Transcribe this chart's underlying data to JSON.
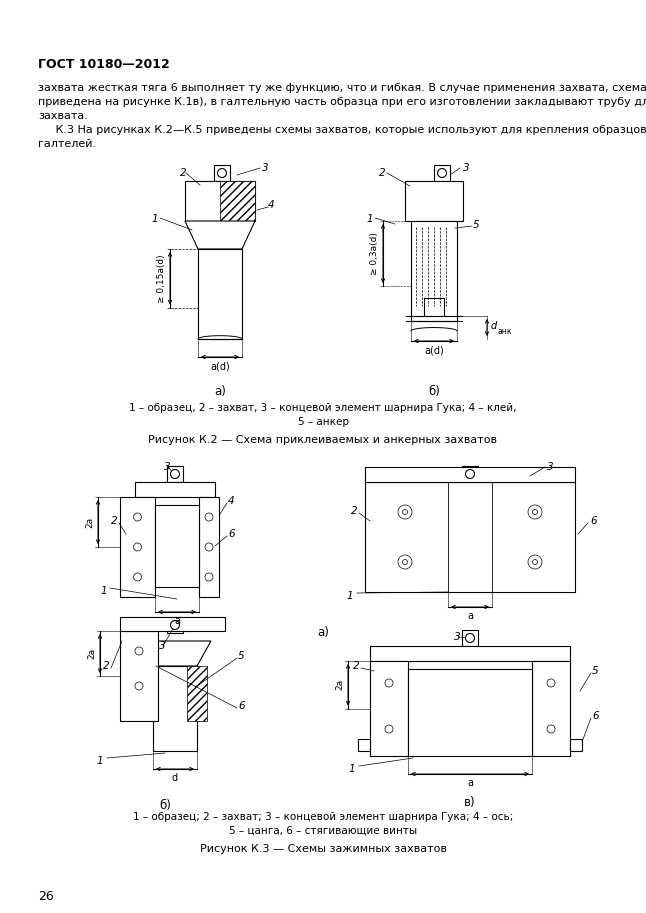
{
  "page_width": 6.46,
  "page_height": 9.13,
  "dpi": 100,
  "bg_color": "#ffffff",
  "header_text": "ГОСТ 10180—2012",
  "body_line1": "захвата жесткая тяга 6 выполняет ту же функцию, что и гибкая. В случае применения захвата, схема которого",
  "body_line2": "приведена на рисунке К.1в), в галтельную часть образца при его изготовлении закладывают трубу для пропуска",
  "body_line3": "захвата.",
  "body_line4": "     К.3 На рисунках К.2—К.5 приведены схемы захватов, которые используют для крепления образцов без",
  "body_line5": "галтелей.",
  "fig2_cap1": "1 – образец, 2 – захват, 3 – концевой элемент шарнира Гука; 4 – клей,",
  "fig2_cap2": "5 – анкер",
  "fig2_title": "Рисунок К.2 — Схема приклеиваемых и анкерных захватов",
  "fig3_cap1": "1 – образец; 2 – захват; 3 – концевой элемент шарнира Гука; 4 – ось;",
  "fig3_cap2": "5 – цанга, 6 – стягивающие винты",
  "fig3_title": "Рисунок К.3 — Схемы зажимных захватов",
  "page_number": "26",
  "lc": "#000000",
  "tc": "#000000"
}
